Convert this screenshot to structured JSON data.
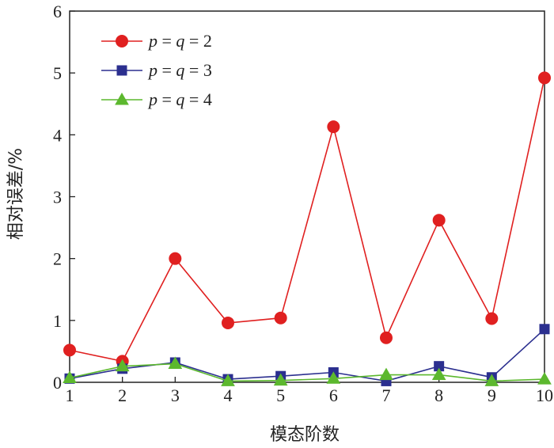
{
  "chart_data": {
    "type": "line",
    "xlabel": "模态阶数",
    "ylabel": "相对误差/%",
    "xlim": [
      1,
      10
    ],
    "ylim": [
      0,
      6
    ],
    "x": [
      1,
      2,
      3,
      4,
      5,
      6,
      7,
      8,
      9,
      10
    ],
    "xticks": [
      1,
      2,
      3,
      4,
      5,
      6,
      7,
      8,
      9,
      10
    ],
    "yticks": [
      0,
      1,
      2,
      3,
      4,
      5,
      6
    ],
    "grid": false,
    "legend_position": "top-left",
    "series": [
      {
        "name": "p = q = 2",
        "legend": {
          "v1": "p",
          "eq1": " = ",
          "v2": "q",
          "rest": " = 2"
        },
        "color": "#e02020",
        "marker": "circle",
        "values": [
          0.52,
          0.34,
          2.0,
          0.96,
          1.04,
          4.13,
          0.72,
          2.62,
          1.03,
          4.92
        ]
      },
      {
        "name": "p = q = 3",
        "legend": {
          "v1": "p",
          "eq1": " = ",
          "v2": "q",
          "rest": " = 3"
        },
        "color": "#2b2f8f",
        "marker": "square",
        "values": [
          0.06,
          0.22,
          0.32,
          0.05,
          0.1,
          0.16,
          0.02,
          0.26,
          0.08,
          0.86
        ]
      },
      {
        "name": "p = q = 4",
        "legend": {
          "v1": "p",
          "eq1": " = ",
          "v2": "q",
          "rest": " = 4"
        },
        "color": "#5cb82e",
        "marker": "triangle",
        "values": [
          0.07,
          0.26,
          0.3,
          0.02,
          0.03,
          0.06,
          0.12,
          0.12,
          0.02,
          0.05
        ]
      }
    ]
  }
}
